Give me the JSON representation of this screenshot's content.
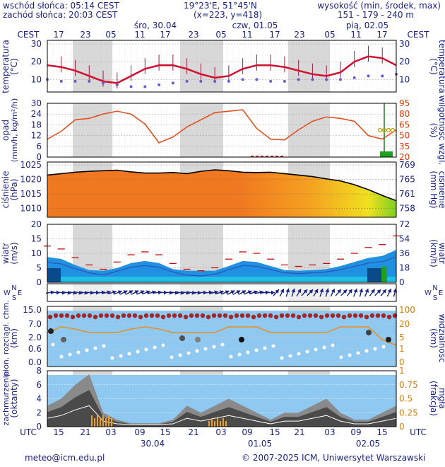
{
  "header": {
    "sunrise": "wschód słońca: 05:14 CEST",
    "sunset": "zachód słońca: 20:03 CEST",
    "coords": "19°23'E, 51°45'N",
    "grid": "(x=223,  y=418)",
    "elev_label": "wysokość (min, środek, max)",
    "elev_value": "151 - 179 - 240 m"
  },
  "timezone_top": "CEST",
  "timezone_bottom": "UTC",
  "hours_top": [
    "17",
    "23",
    "05",
    "11",
    "17",
    "23",
    "05",
    "11",
    "17",
    "23",
    "05",
    "11",
    "17"
  ],
  "hours_bottom": [
    "15",
    "21",
    "03",
    "09",
    "15",
    "21",
    "03",
    "09",
    "15",
    "21",
    "03",
    "09",
    "15"
  ],
  "days_top": [
    "śro, 30.04",
    "czw, 01.05",
    "pią, 02.05"
  ],
  "days_bottom": [
    "30.04",
    "01.05",
    "02.05"
  ],
  "footer": {
    "email": "meteo@icm.edu.pl",
    "copyright": "© 2007-2025 ICM, Uniwersytet Warszawski"
  },
  "colors": {
    "text": "#1a237e",
    "night": "#d8d8d8",
    "temp_line": "#d01030",
    "dew": "#6a5acd",
    "humidity": "#e05020",
    "pressure": "#000000",
    "wind": "#c01010",
    "sky": "#8fc8f0"
  },
  "chart_data": [
    {
      "type": "line",
      "panel": "temperature",
      "left_label": "temperatura",
      "left_unit": "(°C)",
      "right_label": "temperatura",
      "right_unit": "(°C)",
      "ylim": [
        3,
        32
      ],
      "yticks": [
        10,
        20,
        30
      ],
      "series": [
        {
          "values": [
            18,
            17,
            15,
            12,
            9,
            8,
            12,
            16,
            18,
            18,
            16,
            13,
            11,
            12,
            16,
            18,
            18,
            17,
            15,
            13,
            12,
            14,
            20,
            23,
            22,
            18
          ]
        },
        {
          "values": [
            10,
            9,
            9,
            9,
            8,
            7,
            6,
            6,
            7,
            8,
            9,
            9,
            9,
            9,
            10,
            10,
            9,
            9,
            10,
            10,
            10,
            10,
            11,
            12,
            12,
            13
          ]
        }
      ]
    },
    {
      "type": "line",
      "panel": "precipitation",
      "left_label": "opad",
      "left_unit": "(mm/h, kg/m²/h)",
      "right_label": "wilgotność wzgl.",
      "right_unit": "(%)",
      "ylim_left": [
        0,
        30
      ],
      "yticks_left": [
        0,
        6,
        12,
        18,
        24,
        30
      ],
      "ylim_right": [
        20,
        95
      ],
      "yticks_right": [
        20,
        35,
        50,
        65,
        80,
        95
      ],
      "series": [
        {
          "values": [
            45,
            56,
            72,
            74,
            80,
            84,
            80,
            66,
            40,
            48,
            62,
            72,
            82,
            84,
            86,
            60,
            45,
            44,
            58,
            70,
            76,
            74,
            70,
            50,
            45,
            58
          ]
        }
      ]
    },
    {
      "type": "line",
      "panel": "pressure",
      "left_label": "ciśnienie",
      "left_unit": "(hPa)",
      "right_label": "ciśnienie",
      "right_unit": "(mm Hg)",
      "ylim": [
        1007,
        1026
      ],
      "yticks": [
        1010,
        1015,
        1020,
        1025
      ],
      "yticks_right": [
        758,
        761,
        765,
        769
      ],
      "series": [
        {
          "values": [
            1021.5,
            1022,
            1022.5,
            1022.8,
            1023,
            1023.2,
            1022.6,
            1022.2,
            1022.2,
            1022.4,
            1022,
            1022.8,
            1023.3,
            1023,
            1022.5,
            1022.4,
            1022.5,
            1022,
            1021.5,
            1021,
            1020.2,
            1019.5,
            1018.2,
            1016.5,
            1014.5,
            1012.7
          ]
        }
      ]
    },
    {
      "type": "line",
      "panel": "wind",
      "left_label": "wiatr",
      "left_unit": "(m/s)",
      "right_label": "wiatr",
      "right_unit": "(km/h)",
      "ylim": [
        0,
        20
      ],
      "yticks": [
        0,
        5,
        10,
        15,
        20
      ],
      "yticks_right": [
        0,
        18,
        36,
        54,
        72
      ],
      "series": [
        {
          "values": [
            12.5,
            11.5,
            8.5,
            6,
            4.5,
            7,
            9.5,
            10.5,
            9.5,
            6.5,
            4.5,
            4,
            5,
            8,
            10.5,
            10,
            8,
            6,
            5.5,
            6,
            6.5,
            8,
            10,
            12,
            13,
            16
          ]
        }
      ]
    },
    {
      "type": "scatter",
      "panel": "visibility",
      "left_label": "pion. rozciągł. chm.",
      "left_unit": "(km)",
      "right_label": "widzialność",
      "right_unit": "(km)",
      "yticks_left": [
        "15.0",
        "7.0",
        "2.0",
        "0.6",
        "0.0"
      ],
      "yticks_right": [
        "100",
        "20",
        "5",
        "1",
        "0"
      ]
    },
    {
      "type": "area",
      "panel": "cloud",
      "left_label": "zachmurzenie",
      "left_unit": "(oktanty)",
      "right_label": "mgła",
      "right_unit": "(frakcja)",
      "ylim_left": [
        0,
        8
      ],
      "yticks_left": [
        0,
        2,
        4,
        6,
        8
      ],
      "ylim_right": [
        0,
        1
      ],
      "yticks_right": [
        "0",
        "0.25",
        "0.5",
        "0.75",
        "1"
      ],
      "series": [
        {
          "values": [
            3,
            4,
            6,
            7.5,
            2,
            1,
            0.5,
            0.5,
            0.5,
            1,
            3,
            2,
            3,
            4,
            3,
            2,
            1,
            2,
            2,
            3,
            4,
            2,
            1,
            1,
            2,
            3
          ]
        }
      ]
    }
  ]
}
